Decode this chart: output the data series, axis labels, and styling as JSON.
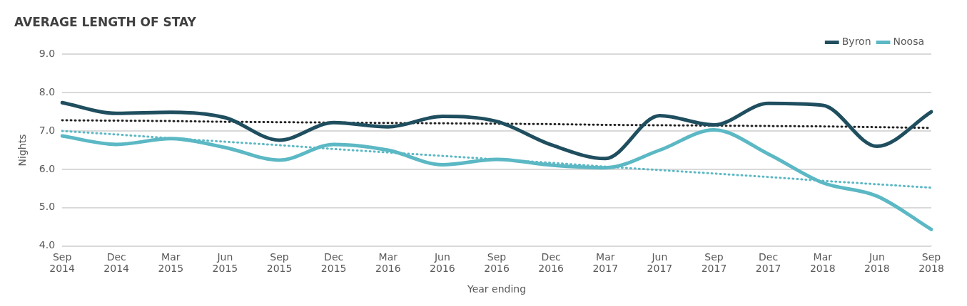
{
  "chart_data": {
    "type": "line",
    "title": "AVERAGE LENGTH OF STAY",
    "xlabel": "Year ending",
    "ylabel": "Nights",
    "categories": [
      "Sep\n2014",
      "Dec\n2014",
      "Mar\n2015",
      "Jun\n2015",
      "Sep\n2015",
      "Dec\n2015",
      "Mar\n2016",
      "Jun\n2016",
      "Sep\n2016",
      "Dec\n2016",
      "Mar\n2017",
      "Jun\n2017",
      "Sep\n2017",
      "Dec\n2017",
      "Mar\n2018",
      "Jun\n2018",
      "Sep\n2018"
    ],
    "series": [
      {
        "name": "Byron",
        "color": "#1f4e5f",
        "values": [
          7.74,
          7.46,
          7.49,
          7.35,
          6.76,
          7.22,
          7.11,
          7.38,
          7.25,
          6.64,
          6.28,
          7.4,
          7.16,
          7.72,
          7.67,
          6.6,
          7.5
        ]
      },
      {
        "name": "Noosa",
        "color": "#5bb8c4",
        "values": [
          6.87,
          6.65,
          6.8,
          6.57,
          6.24,
          6.65,
          6.5,
          6.12,
          6.26,
          6.11,
          6.04,
          6.5,
          7.03,
          6.4,
          5.65,
          5.3,
          4.43
        ]
      },
      {
        "color": "#222222",
        "line_style": "dotted",
        "values": [
          7.28,
          7.27,
          7.26,
          7.24,
          7.23,
          7.22,
          7.21,
          7.2,
          7.19,
          7.18,
          7.16,
          7.15,
          7.14,
          7.13,
          7.12,
          7.1,
          7.08
        ]
      },
      {
        "color": "#5bb8c4",
        "line_style": "dotted",
        "values": [
          7.0,
          6.91,
          6.81,
          6.72,
          6.63,
          6.53,
          6.44,
          6.35,
          6.26,
          6.17,
          6.07,
          5.98,
          5.89,
          5.8,
          5.7,
          5.61,
          5.52
        ]
      }
    ],
    "ylim": [
      4,
      9
    ],
    "yticks": [
      {
        "value": 4,
        "label": "4.0"
      },
      {
        "value": 5,
        "label": "5.0"
      },
      {
        "value": 6,
        "label": "6.0"
      },
      {
        "value": 7,
        "label": "7.0"
      },
      {
        "value": 8,
        "label": "8.0"
      },
      {
        "value": 9,
        "label": "9.0"
      }
    ],
    "grid": "y",
    "legend": "top right",
    "marker": "none"
  }
}
